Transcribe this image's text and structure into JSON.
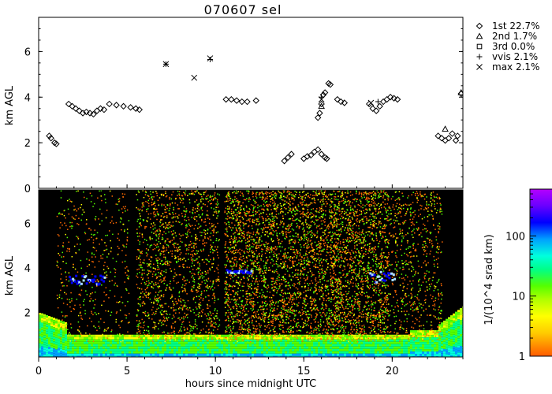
{
  "title": "070607 sel",
  "colorbar_label": "1/(10^4 srad km)",
  "chart_data": [
    {
      "type": "scatter",
      "title": "070607 sel",
      "xlabel": "",
      "ylabel": "km AGL",
      "xlim": [
        0,
        24
      ],
      "ylim": [
        0,
        7.5
      ],
      "yticks": [
        0,
        2,
        4,
        6
      ],
      "legend_position": "right",
      "series": [
        {
          "name": "1st 22.7%",
          "marker": "diamond",
          "points": [
            [
              0.6,
              2.3
            ],
            [
              0.7,
              2.2
            ],
            [
              0.9,
              2.0
            ],
            [
              1.0,
              1.95
            ],
            [
              1.7,
              3.7
            ],
            [
              1.9,
              3.6
            ],
            [
              2.1,
              3.5
            ],
            [
              2.3,
              3.4
            ],
            [
              2.5,
              3.3
            ],
            [
              2.7,
              3.35
            ],
            [
              2.9,
              3.3
            ],
            [
              3.1,
              3.25
            ],
            [
              3.3,
              3.4
            ],
            [
              3.5,
              3.5
            ],
            [
              3.7,
              3.45
            ],
            [
              4.0,
              3.7
            ],
            [
              4.4,
              3.65
            ],
            [
              4.8,
              3.6
            ],
            [
              5.2,
              3.55
            ],
            [
              5.5,
              3.5
            ],
            [
              5.7,
              3.45
            ],
            [
              10.6,
              3.9
            ],
            [
              10.9,
              3.9
            ],
            [
              11.2,
              3.85
            ],
            [
              11.5,
              3.8
            ],
            [
              11.8,
              3.8
            ],
            [
              12.3,
              3.85
            ],
            [
              13.9,
              1.2
            ],
            [
              14.1,
              1.35
            ],
            [
              14.3,
              1.5
            ],
            [
              15.0,
              1.3
            ],
            [
              15.2,
              1.4
            ],
            [
              15.4,
              1.45
            ],
            [
              15.6,
              1.6
            ],
            [
              15.8,
              1.7
            ],
            [
              16.0,
              1.5
            ],
            [
              16.2,
              1.35
            ],
            [
              16.3,
              1.3
            ],
            [
              15.8,
              3.1
            ],
            [
              15.9,
              3.3
            ],
            [
              16.0,
              3.7
            ],
            [
              16.1,
              4.1
            ],
            [
              16.2,
              4.2
            ],
            [
              16.4,
              4.6
            ],
            [
              16.5,
              4.55
            ],
            [
              16.9,
              3.9
            ],
            [
              17.1,
              3.8
            ],
            [
              17.3,
              3.75
            ],
            [
              18.7,
              3.7
            ],
            [
              18.9,
              3.5
            ],
            [
              19.1,
              3.4
            ],
            [
              19.3,
              3.6
            ],
            [
              19.5,
              3.8
            ],
            [
              19.7,
              3.9
            ],
            [
              19.9,
              4.0
            ],
            [
              20.1,
              3.95
            ],
            [
              20.3,
              3.9
            ],
            [
              22.6,
              2.3
            ],
            [
              22.8,
              2.2
            ],
            [
              23.0,
              2.1
            ],
            [
              23.2,
              2.2
            ],
            [
              23.4,
              2.4
            ],
            [
              23.6,
              2.1
            ],
            [
              23.7,
              2.3
            ],
            [
              23.9,
              4.15
            ]
          ]
        },
        {
          "name": "2nd 1.7%",
          "marker": "triangle",
          "points": [
            [
              16.0,
              3.6
            ],
            [
              23.0,
              2.6
            ],
            [
              23.9,
              4.2
            ]
          ]
        },
        {
          "name": "3rd 0.0%",
          "marker": "square",
          "points": []
        },
        {
          "name": "vvis 2.1%",
          "marker": "plus",
          "points": [
            [
              7.2,
              5.45
            ],
            [
              9.7,
              5.65
            ],
            [
              16.0,
              4.0
            ],
            [
              19.2,
              3.8
            ]
          ]
        },
        {
          "name": "max 2.1%",
          "marker": "x",
          "points": [
            [
              7.2,
              5.45
            ],
            [
              8.8,
              4.85
            ],
            [
              9.7,
              5.7
            ],
            [
              16.0,
              3.9
            ],
            [
              18.8,
              3.75
            ]
          ]
        }
      ]
    },
    {
      "type": "heatmap",
      "xlabel": "hours since midnight UTC",
      "ylabel": "km AGL",
      "xlim": [
        0,
        24
      ],
      "ylim": [
        0,
        7.5
      ],
      "xticks": [
        0,
        5,
        10,
        15,
        20
      ],
      "yticks": [
        2,
        4,
        6
      ],
      "colorbar": {
        "label": "1/(10^4 srad km)",
        "scale": "log",
        "ticks": [
          "1",
          "10",
          "100"
        ],
        "range": [
          1,
          600
        ]
      },
      "colors": {
        "low": "#ff6a00",
        "mid": "#ffff00",
        "green": "#55ff00",
        "cyan": "#00ffcc",
        "blue": "#0000ff",
        "high": "#b400ff",
        "background": "#000000"
      }
    }
  ]
}
